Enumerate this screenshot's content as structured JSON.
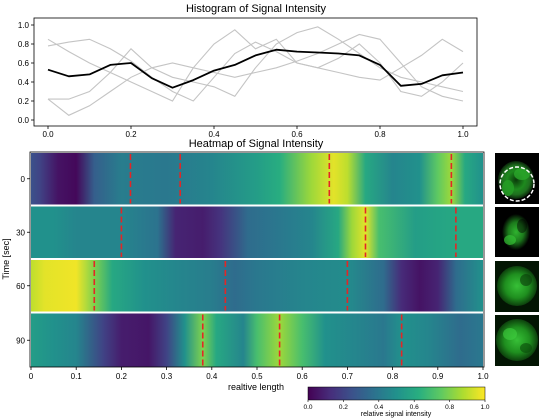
{
  "chart_data": [
    {
      "type": "line",
      "title": "Histogram of Signal Intensity",
      "xlim": [
        0,
        1
      ],
      "ylim": [
        0,
        1
      ],
      "xticks": [
        "0.0",
        "0.2",
        "0.4",
        "0.6",
        "0.8",
        "1.0"
      ],
      "yticks": [
        "0.0",
        "0.2",
        "0.4",
        "0.6",
        "0.8",
        "1.0"
      ],
      "grid": false,
      "background_series": [
        {
          "color": "#c4c4c4",
          "x": [
            0,
            0.05,
            0.1,
            0.15,
            0.2,
            0.25,
            0.3,
            0.35,
            0.4,
            0.45,
            0.5,
            0.55,
            0.6,
            0.65,
            0.7,
            0.75,
            0.8,
            0.85,
            0.9,
            0.95,
            1.0
          ],
          "y": [
            0.85,
            0.72,
            0.6,
            0.5,
            0.4,
            0.3,
            0.2,
            0.55,
            0.8,
            0.95,
            0.75,
            0.85,
            0.6,
            0.55,
            0.65,
            0.8,
            0.6,
            0.3,
            0.25,
            0.4,
            0.6
          ]
        },
        {
          "color": "#c4c4c4",
          "x": [
            0,
            0.05,
            0.1,
            0.15,
            0.2,
            0.25,
            0.3,
            0.35,
            0.4,
            0.45,
            0.5,
            0.55,
            0.6,
            0.65,
            0.7,
            0.75,
            0.8,
            0.85,
            0.9,
            0.95,
            1.0
          ],
          "y": [
            0.22,
            0.22,
            0.3,
            0.5,
            0.75,
            0.55,
            0.45,
            0.4,
            0.35,
            0.25,
            0.55,
            0.8,
            0.92,
            0.98,
            0.85,
            0.7,
            0.55,
            0.45,
            0.4,
            0.35,
            0.3
          ]
        },
        {
          "color": "#c4c4c4",
          "x": [
            0,
            0.05,
            0.1,
            0.15,
            0.2,
            0.25,
            0.3,
            0.35,
            0.4,
            0.45,
            0.5,
            0.55,
            0.6,
            0.65,
            0.7,
            0.75,
            0.8,
            0.85,
            0.9,
            0.95,
            1.0
          ],
          "y": [
            0.78,
            0.82,
            0.85,
            0.75,
            0.62,
            0.45,
            0.3,
            0.2,
            0.45,
            0.7,
            0.82,
            0.72,
            0.6,
            0.55,
            0.5,
            0.45,
            0.42,
            0.55,
            0.68,
            0.85,
            0.72
          ]
        },
        {
          "color": "#c4c4c4",
          "x": [
            0,
            0.05,
            0.1,
            0.15,
            0.2,
            0.25,
            0.3,
            0.35,
            0.4,
            0.45,
            0.5,
            0.55,
            0.6,
            0.65,
            0.7,
            0.75,
            0.8,
            0.85,
            0.9,
            0.95,
            1.0
          ],
          "y": [
            0.22,
            0.05,
            0.15,
            0.3,
            0.45,
            0.55,
            0.6,
            0.55,
            0.5,
            0.45,
            0.5,
            0.55,
            0.62,
            0.7,
            0.8,
            0.9,
            0.85,
            0.6,
            0.35,
            0.25,
            0.2
          ]
        }
      ],
      "series": [
        {
          "color": "#000000",
          "x": [
            0,
            0.05,
            0.1,
            0.15,
            0.2,
            0.25,
            0.3,
            0.35,
            0.4,
            0.45,
            0.5,
            0.55,
            0.6,
            0.65,
            0.7,
            0.75,
            0.8,
            0.85,
            0.9,
            0.95,
            1.0
          ],
          "y": [
            0.53,
            0.46,
            0.48,
            0.58,
            0.6,
            0.44,
            0.34,
            0.42,
            0.52,
            0.58,
            0.68,
            0.74,
            0.72,
            0.71,
            0.7,
            0.68,
            0.58,
            0.36,
            0.38,
            0.47,
            0.5
          ]
        }
      ]
    },
    {
      "type": "heatmap",
      "title": "Heatmap of Signal Intensity",
      "xlabel": "realtive length",
      "ylabel": "Time [sec]",
      "xlim": [
        0,
        1
      ],
      "xticks": [
        "0",
        "0.1",
        "0.2",
        "0.3",
        "0.4",
        "0.5",
        "0.6",
        "0.7",
        "0.8",
        "0.9",
        "1.0"
      ],
      "rows": [
        {
          "label": "0",
          "profile": [
            [
              0,
              0.25
            ],
            [
              0.02,
              0.2
            ],
            [
              0.06,
              0.05
            ],
            [
              0.1,
              0.02
            ],
            [
              0.14,
              0.3
            ],
            [
              0.2,
              0.42
            ],
            [
              0.3,
              0.4
            ],
            [
              0.4,
              0.45
            ],
            [
              0.5,
              0.55
            ],
            [
              0.55,
              0.62
            ],
            [
              0.62,
              0.85
            ],
            [
              0.67,
              0.96
            ],
            [
              0.7,
              0.9
            ],
            [
              0.74,
              0.6
            ],
            [
              0.8,
              0.45
            ],
            [
              0.86,
              0.5
            ],
            [
              0.9,
              0.75
            ],
            [
              0.93,
              0.85
            ],
            [
              0.96,
              0.6
            ],
            [
              1.0,
              0.5
            ]
          ],
          "markers": [
            0.22,
            0.33,
            0.66,
            0.93
          ]
        },
        {
          "label": "30",
          "profile": [
            [
              0,
              0.5
            ],
            [
              0.05,
              0.5
            ],
            [
              0.1,
              0.45
            ],
            [
              0.2,
              0.45
            ],
            [
              0.28,
              0.38
            ],
            [
              0.32,
              0.1
            ],
            [
              0.38,
              0.08
            ],
            [
              0.42,
              0.15
            ],
            [
              0.48,
              0.35
            ],
            [
              0.55,
              0.4
            ],
            [
              0.62,
              0.45
            ],
            [
              0.68,
              0.6
            ],
            [
              0.71,
              0.85
            ],
            [
              0.74,
              0.96
            ],
            [
              0.77,
              0.7
            ],
            [
              0.85,
              0.55
            ],
            [
              0.9,
              0.58
            ],
            [
              0.95,
              0.6
            ],
            [
              1.0,
              0.6
            ]
          ],
          "markers": [
            0.2,
            0.74,
            0.94
          ]
        },
        {
          "label": "60",
          "profile": [
            [
              0,
              0.9
            ],
            [
              0.03,
              0.96
            ],
            [
              0.1,
              0.98
            ],
            [
              0.14,
              0.8
            ],
            [
              0.18,
              0.6
            ],
            [
              0.25,
              0.5
            ],
            [
              0.33,
              0.45
            ],
            [
              0.4,
              0.42
            ],
            [
              0.45,
              0.35
            ],
            [
              0.5,
              0.4
            ],
            [
              0.6,
              0.45
            ],
            [
              0.7,
              0.48
            ],
            [
              0.78,
              0.35
            ],
            [
              0.82,
              0.12
            ],
            [
              0.86,
              0.05
            ],
            [
              0.9,
              0.1
            ],
            [
              0.94,
              0.35
            ],
            [
              1.0,
              0.5
            ]
          ],
          "markers": [
            0.14,
            0.43,
            0.7
          ]
        },
        {
          "label": "90",
          "profile": [
            [
              0,
              0.55
            ],
            [
              0.05,
              0.5
            ],
            [
              0.1,
              0.45
            ],
            [
              0.16,
              0.2
            ],
            [
              0.2,
              0.08
            ],
            [
              0.26,
              0.06
            ],
            [
              0.3,
              0.2
            ],
            [
              0.34,
              0.5
            ],
            [
              0.38,
              0.8
            ],
            [
              0.41,
              0.6
            ],
            [
              0.47,
              0.45
            ],
            [
              0.5,
              0.7
            ],
            [
              0.55,
              0.85
            ],
            [
              0.6,
              0.7
            ],
            [
              0.65,
              0.5
            ],
            [
              0.72,
              0.45
            ],
            [
              0.78,
              0.4
            ],
            [
              0.82,
              0.5
            ],
            [
              0.88,
              0.45
            ],
            [
              0.95,
              0.35
            ],
            [
              1.0,
              0.4
            ]
          ],
          "markers": [
            0.38,
            0.55,
            0.82
          ]
        }
      ],
      "colorbar": {
        "label": "relative signal intensity",
        "ticks": [
          "0.0",
          "0.2",
          "0.4",
          "0.6",
          "0.8",
          "1.0"
        ],
        "colormap": "viridis"
      },
      "marker_color": "#e32626"
    }
  ]
}
